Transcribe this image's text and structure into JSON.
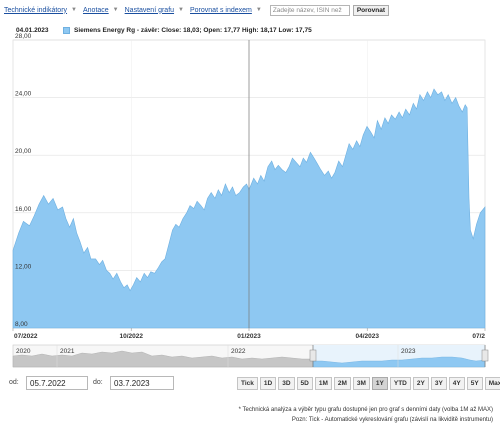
{
  "toolbar": {
    "links": [
      "Technické indikátory",
      "Anotace",
      "Nastavení grafu",
      "Porovnat s indexem"
    ],
    "search_placeholder": "Zadejte název, ISIN než",
    "compare_button": "Porovnat"
  },
  "legend": {
    "date": "04.01.2023",
    "text": "Siemens Energy Rg - závěr: Close: 18,03; Open: 17,77 High: 18,17 Low: 17,75",
    "swatch_color": "#8ec8f2"
  },
  "chart_data": {
    "type": "area",
    "x_tick_labels": [
      "07/2022",
      "10/2022",
      "01/2023",
      "04/2023",
      "07/2"
    ],
    "x_tick_positions": [
      0.0,
      0.2505,
      0.5,
      0.7505,
      1.0
    ],
    "y_tick_labels": [
      "8,00",
      "12,00",
      "16,00",
      "20,00",
      "24,00",
      "28,00"
    ],
    "ylim": [
      8,
      28
    ],
    "grid": true,
    "crosshair_x": 0.5,
    "series": [
      {
        "color": "#8ec8f2",
        "x": [
          0,
          0.012,
          0.022,
          0.035,
          0.045,
          0.055,
          0.065,
          0.075,
          0.085,
          0.095,
          0.105,
          0.112,
          0.12,
          0.128,
          0.135,
          0.142,
          0.15,
          0.158,
          0.165,
          0.175,
          0.183,
          0.19,
          0.198,
          0.205,
          0.212,
          0.22,
          0.228,
          0.235,
          0.242,
          0.248,
          0.255,
          0.262,
          0.27,
          0.278,
          0.285,
          0.292,
          0.3,
          0.308,
          0.315,
          0.322,
          0.33,
          0.338,
          0.345,
          0.352,
          0.36,
          0.368,
          0.375,
          0.383,
          0.39,
          0.398,
          0.405,
          0.412,
          0.42,
          0.428,
          0.435,
          0.442,
          0.45,
          0.458,
          0.465,
          0.472,
          0.48,
          0.488,
          0.495,
          0.5,
          0.51,
          0.518,
          0.525,
          0.532,
          0.54,
          0.548,
          0.555,
          0.562,
          0.57,
          0.578,
          0.585,
          0.592,
          0.6,
          0.608,
          0.615,
          0.622,
          0.63,
          0.638,
          0.645,
          0.652,
          0.66,
          0.668,
          0.675,
          0.682,
          0.69,
          0.698,
          0.705,
          0.712,
          0.72,
          0.728,
          0.735,
          0.742,
          0.75,
          0.758,
          0.765,
          0.772,
          0.78,
          0.788,
          0.795,
          0.802,
          0.81,
          0.818,
          0.825,
          0.832,
          0.84,
          0.848,
          0.855,
          0.862,
          0.87,
          0.878,
          0.885,
          0.892,
          0.9,
          0.908,
          0.915,
          0.922,
          0.93,
          0.938,
          0.945,
          0.952,
          0.958,
          0.962,
          0.966,
          0.969,
          0.975,
          0.982,
          0.99,
          1.0
        ],
        "values": [
          13.4,
          14.6,
          15.4,
          15.1,
          15.8,
          16.6,
          17.2,
          16.6,
          17.0,
          16.2,
          16.4,
          15.6,
          15.0,
          15.6,
          14.6,
          14.0,
          13.2,
          13.6,
          12.8,
          12.8,
          12.4,
          12.7,
          12.0,
          11.8,
          11.4,
          11.8,
          11.2,
          10.8,
          11.0,
          10.6,
          11.0,
          11.5,
          11.2,
          11.8,
          11.5,
          11.9,
          11.8,
          12.2,
          12.6,
          12.8,
          13.8,
          14.8,
          15.2,
          15.0,
          15.6,
          16.0,
          16.5,
          16.3,
          16.8,
          16.5,
          16.2,
          17.0,
          17.4,
          17.0,
          17.6,
          17.2,
          18.0,
          17.4,
          17.8,
          17.2,
          17.4,
          17.8,
          18.0,
          17.6,
          18.4,
          18.0,
          18.6,
          18.2,
          19.2,
          19.6,
          19.0,
          19.3,
          19.0,
          18.8,
          19.2,
          19.8,
          19.5,
          19.2,
          19.8,
          19.5,
          20.2,
          19.8,
          19.4,
          19.0,
          18.6,
          18.9,
          18.4,
          18.8,
          19.6,
          19.2,
          20.0,
          20.8,
          20.4,
          21.0,
          20.6,
          21.4,
          22.0,
          21.6,
          21.2,
          22.4,
          21.8,
          22.6,
          22.2,
          22.8,
          22.5,
          23.0,
          22.6,
          23.2,
          22.8,
          23.6,
          23.2,
          24.2,
          23.8,
          24.4,
          24.0,
          24.6,
          24.2,
          24.4,
          23.8,
          24.2,
          23.6,
          24.0,
          23.4,
          23.0,
          23.5,
          23.3,
          17.0,
          14.8,
          14.2,
          15.2,
          16.0,
          16.4
        ]
      }
    ]
  },
  "navigator": {
    "labels": [
      "2020",
      "2021",
      "2022",
      "2023"
    ]
  },
  "date_range": {
    "from_label": "od:",
    "from_value": "05.7.2022",
    "to_label": "do:",
    "to_value": "03.7.2023"
  },
  "range_buttons": [
    "Tick",
    "1D",
    "3D",
    "5D",
    "1M",
    "2M",
    "3M",
    "1Y",
    "YTD",
    "2Y",
    "3Y",
    "4Y",
    "5Y",
    "Max"
  ],
  "active_range": "1Y",
  "footnotes": [
    "* Technická analýza a výběr typu grafu dostupné jen pro graf s denními daty (volba 1M až MAX)",
    "Pozn: Tick - Automatické vykreslování grafu (závislí na likviditě instrumentu)"
  ]
}
